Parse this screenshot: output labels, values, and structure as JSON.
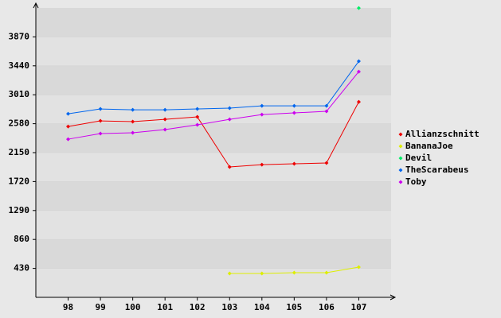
{
  "chart_data": {
    "type": "line",
    "categories": [
      "98",
      "99",
      "100",
      "101",
      "102",
      "103",
      "104",
      "105",
      "106",
      "107"
    ],
    "series": [
      {
        "name": "Allianzschnitt",
        "color": "#ee0000",
        "values": [
          2539,
          2622,
          2610,
          2645,
          2681,
          1937,
          1972,
          1984,
          1996,
          2905
        ]
      },
      {
        "name": "BananaJoe",
        "color": "#ddee00",
        "values": [
          null,
          null,
          null,
          null,
          null,
          354,
          354,
          366,
          366,
          449
        ]
      },
      {
        "name": "Devil",
        "color": "#00ee66",
        "values": [
          null,
          null,
          null,
          null,
          null,
          null,
          null,
          null,
          null,
          4299
        ]
      },
      {
        "name": "TheScarabeus",
        "color": "#0066ee",
        "values": [
          2728,
          2799,
          2787,
          2787,
          2799,
          2811,
          2846,
          2846,
          2846,
          3508
        ]
      },
      {
        "name": "Toby",
        "color": "#cc00ee",
        "values": [
          2350,
          2433,
          2445,
          2492,
          2563,
          2645,
          2716,
          2740,
          2764,
          3354
        ]
      }
    ],
    "ylim": [
      0,
      4300
    ],
    "yticks": [
      430,
      860,
      1290,
      1720,
      2150,
      2580,
      3010,
      3440,
      3870
    ],
    "grid": true,
    "legend": "right"
  }
}
